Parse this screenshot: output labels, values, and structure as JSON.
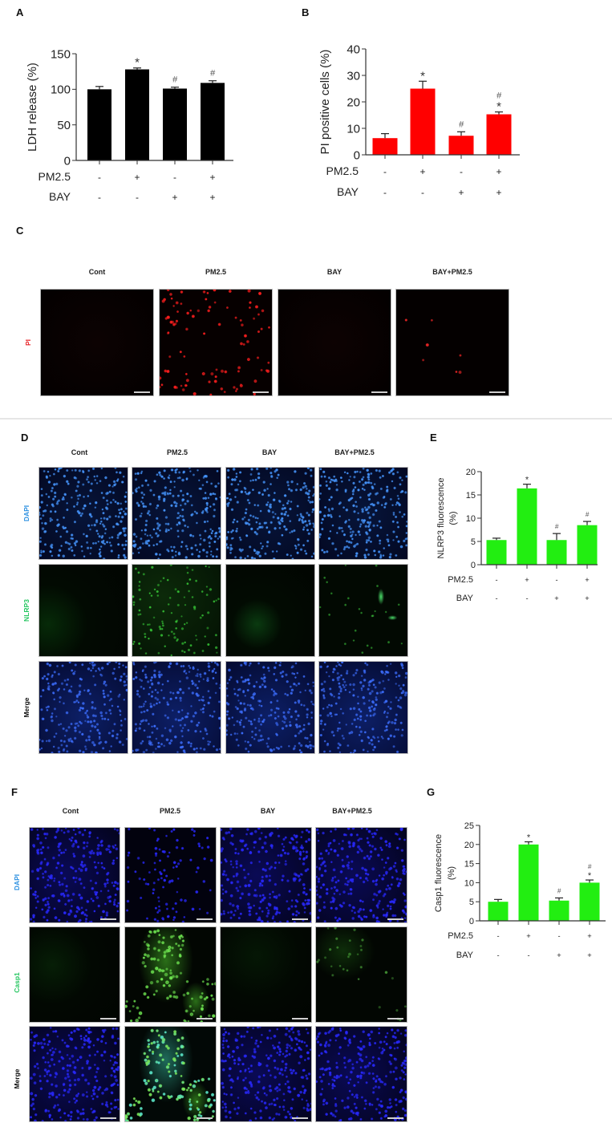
{
  "panels": {
    "A": {
      "letter": "A"
    },
    "B": {
      "letter": "B"
    },
    "C": {
      "letter": "C",
      "columns": [
        "Cont",
        "PM2.5",
        "BAY",
        "BAY+PM2.5"
      ],
      "rows": [
        {
          "label": "PI",
          "color": "#e8262a"
        }
      ]
    },
    "D": {
      "letter": "D",
      "columns": [
        "Cont",
        "PM2.5",
        "BAY",
        "BAY+PM2.5"
      ],
      "rows": [
        {
          "label": "DAPI",
          "color": "#2a8fe0"
        },
        {
          "label": "NLRP3",
          "color": "#22c55e"
        },
        {
          "label": "Merge",
          "color": "#111111"
        }
      ]
    },
    "E": {
      "letter": "E"
    },
    "F": {
      "letter": "F",
      "columns": [
        "Cont",
        "PM2.5",
        "BAY",
        "BAY+PM2.5"
      ],
      "rows": [
        {
          "label": "DAPI",
          "color": "#2a8fe0"
        },
        {
          "label": "Casp1",
          "color": "#22c55e"
        },
        {
          "label": "Merge",
          "color": "#111111"
        }
      ]
    },
    "G": {
      "letter": "G"
    }
  },
  "treatment_rows": {
    "pm25_label": "PM2.5",
    "bay_label": "BAY",
    "pm25": [
      "-",
      "+",
      "-",
      "+"
    ],
    "bay": [
      "-",
      "-",
      "+",
      "+"
    ]
  },
  "chart_data": [
    {
      "panel": "A",
      "type": "bar",
      "title": "",
      "ylabel": "LDH release (%)",
      "xlabel": "",
      "categories": [
        "Cont",
        "PM2.5",
        "BAY",
        "BAY+PM2.5"
      ],
      "values": [
        100,
        128,
        101,
        109
      ],
      "errors": [
        4,
        2,
        2,
        3
      ],
      "annotations": [
        "",
        "*",
        "#",
        "#"
      ],
      "yticks": [
        0,
        50,
        100,
        150
      ],
      "ylim": [
        0,
        150
      ],
      "bar_color": "#000000",
      "grid": false
    },
    {
      "panel": "B",
      "type": "bar",
      "title": "",
      "ylabel": "PI positive cells (%)",
      "xlabel": "",
      "categories": [
        "Cont",
        "PM2.5",
        "BAY",
        "BAY+PM2.5"
      ],
      "values": [
        6.3,
        25,
        7.2,
        15.3
      ],
      "errors": [
        1.7,
        2.8,
        1.5,
        0.9
      ],
      "annotations": [
        "",
        "*",
        "#",
        "#*"
      ],
      "yticks": [
        0,
        10,
        20,
        30,
        40
      ],
      "ylim": [
        0,
        40
      ],
      "bar_color": "#ff0000",
      "grid": false
    },
    {
      "panel": "E",
      "type": "bar",
      "title": "",
      "ylabel": "NLRP3 fluorescence (%)",
      "xlabel": "",
      "categories": [
        "Cont",
        "PM2.5",
        "BAY",
        "BAY+PM2.5"
      ],
      "values": [
        5.3,
        16.4,
        5.3,
        8.5
      ],
      "errors": [
        0.4,
        0.9,
        1.4,
        0.8
      ],
      "annotations": [
        "",
        "*",
        "#",
        "#"
      ],
      "yticks": [
        0,
        5,
        10,
        15,
        20
      ],
      "ylim": [
        0,
        20
      ],
      "bar_color": "#22ee11",
      "grid": false
    },
    {
      "panel": "G",
      "type": "bar",
      "title": "",
      "ylabel": "Casp1 fluorescence (%)",
      "xlabel": "",
      "categories": [
        "Cont",
        "PM2.5",
        "BAY",
        "BAY+PM2.5"
      ],
      "values": [
        5,
        20,
        5.3,
        10
      ],
      "errors": [
        0.6,
        0.7,
        0.7,
        0.7
      ],
      "annotations": [
        "",
        "*",
        "#",
        "#*"
      ],
      "yticks": [
        0,
        5,
        10,
        15,
        20,
        25
      ],
      "ylim": [
        0,
        25
      ],
      "bar_color": "#22ee11",
      "grid": false
    }
  ]
}
